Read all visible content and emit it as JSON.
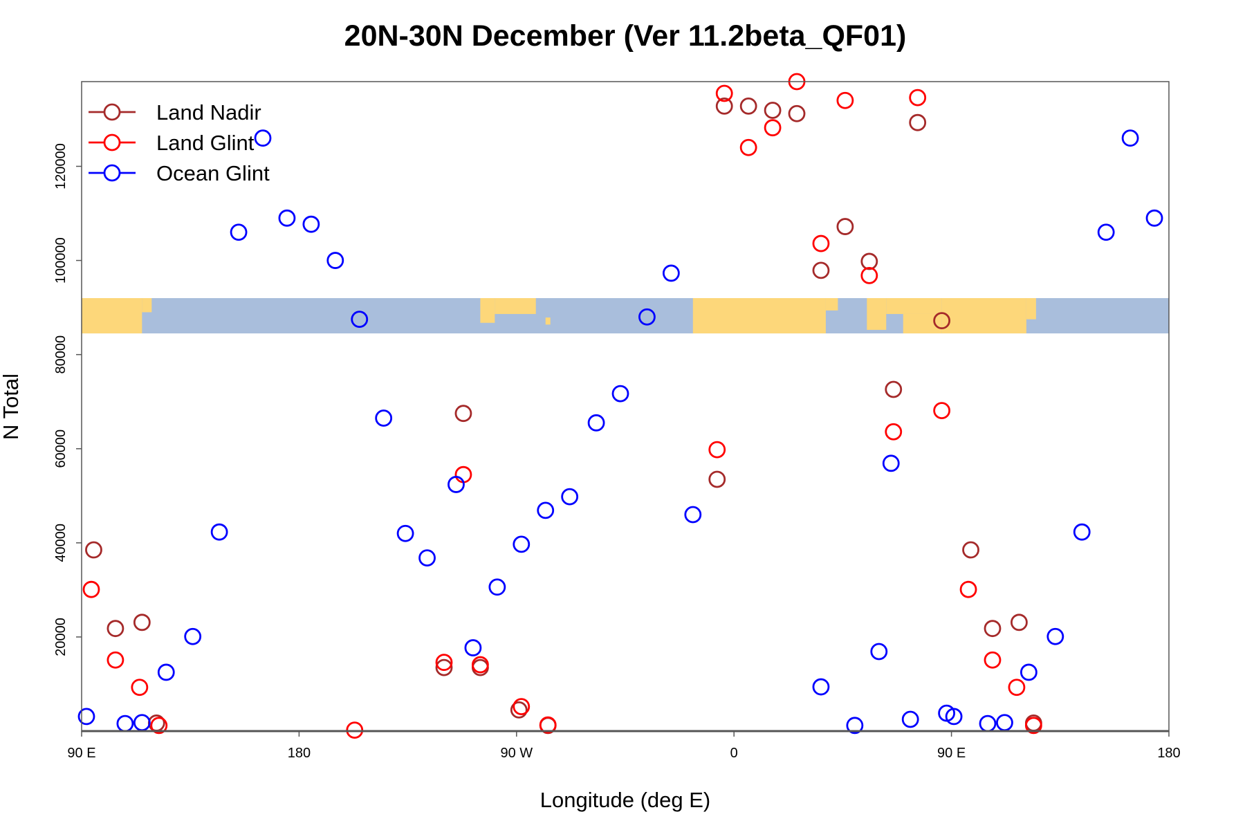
{
  "chart_data": {
    "type": "scatter",
    "title": "20N-30N December (Ver 11.2beta_QF01)",
    "xlabel": "Longitude (deg E)",
    "ylabel": "N Total",
    "x_range_deg": [
      90,
      540
    ],
    "ylim": [
      0,
      138000
    ],
    "x_ticks": [
      {
        "value": 90,
        "label": "90 E"
      },
      {
        "value": 180,
        "label": "180"
      },
      {
        "value": 270,
        "label": "90 W"
      },
      {
        "value": 360,
        "label": "0"
      },
      {
        "value": 450,
        "label": "90 E"
      },
      {
        "value": 540,
        "label": "180"
      }
    ],
    "y_ticks": [
      {
        "value": 20000,
        "label": "20000"
      },
      {
        "value": 40000,
        "label": "40000"
      },
      {
        "value": 60000,
        "label": "60000"
      },
      {
        "value": 80000,
        "label": "80000"
      },
      {
        "value": 100000,
        "label": "100000"
      },
      {
        "value": 120000,
        "label": "120000"
      }
    ],
    "map_strip": {
      "y_range": [
        84500,
        92000
      ],
      "ocean_color": "#a9bedc",
      "land_color": "#fdd77a"
    },
    "legend": {
      "position": "top-left"
    },
    "series": [
      {
        "name": "Land Nadir",
        "color": "#a52a2a",
        "points": [
          [
            95,
            38500
          ],
          [
            104,
            21800
          ],
          [
            115,
            23100
          ],
          [
            121,
            1700
          ],
          [
            248,
            67500
          ],
          [
            240,
            13500
          ],
          [
            255,
            13500
          ],
          [
            271,
            4500
          ],
          [
            283,
            1200
          ],
          [
            353,
            53500
          ],
          [
            356,
            132800
          ],
          [
            366,
            132800
          ],
          [
            376,
            131900
          ],
          [
            386,
            131200
          ],
          [
            396,
            97900
          ],
          [
            406,
            107200
          ],
          [
            416,
            99800
          ],
          [
            426,
            72600
          ],
          [
            436,
            129300
          ],
          [
            446,
            87200
          ],
          [
            458,
            38500
          ],
          [
            467,
            21800
          ],
          [
            478,
            23100
          ],
          [
            484,
            1700
          ]
        ]
      },
      {
        "name": "Land Glint",
        "color": "#ff0000",
        "points": [
          [
            94,
            30100
          ],
          [
            104,
            15100
          ],
          [
            114,
            9300
          ],
          [
            122,
            1200
          ],
          [
            203,
            200
          ],
          [
            240,
            14600
          ],
          [
            248,
            54500
          ],
          [
            255,
            14100
          ],
          [
            272,
            5200
          ],
          [
            283,
            1300
          ],
          [
            353,
            59800
          ],
          [
            356,
            135500
          ],
          [
            366,
            124000
          ],
          [
            376,
            128200
          ],
          [
            386,
            138000
          ],
          [
            396,
            103600
          ],
          [
            406,
            134000
          ],
          [
            416,
            96800
          ],
          [
            426,
            63600
          ],
          [
            436,
            134600
          ],
          [
            446,
            68100
          ],
          [
            457,
            30100
          ],
          [
            467,
            15100
          ],
          [
            477,
            9300
          ],
          [
            484,
            1200
          ]
        ]
      },
      {
        "name": "Ocean Glint",
        "color": "#0000ff",
        "points": [
          [
            92,
            3100
          ],
          [
            108,
            1600
          ],
          [
            115,
            1800
          ],
          [
            125,
            12500
          ],
          [
            136,
            20100
          ],
          [
            147,
            42300
          ],
          [
            155,
            106000
          ],
          [
            165,
            126000
          ],
          [
            175,
            109000
          ],
          [
            185,
            107700
          ],
          [
            195,
            100000
          ],
          [
            205,
            87500
          ],
          [
            215,
            66500
          ],
          [
            224,
            42000
          ],
          [
            233,
            36800
          ],
          [
            245,
            52400
          ],
          [
            252,
            17700
          ],
          [
            262,
            30600
          ],
          [
            272,
            39700
          ],
          [
            282,
            46900
          ],
          [
            292,
            49800
          ],
          [
            303,
            65500
          ],
          [
            313,
            71700
          ],
          [
            324,
            88000
          ],
          [
            334,
            97300
          ],
          [
            343,
            46000
          ],
          [
            396,
            9400
          ],
          [
            410,
            1200
          ],
          [
            420,
            16900
          ],
          [
            425,
            56900
          ],
          [
            433,
            2500
          ],
          [
            448,
            3800
          ],
          [
            451,
            3100
          ],
          [
            465,
            1600
          ],
          [
            472,
            1800
          ],
          [
            482,
            12500
          ],
          [
            493,
            20100
          ],
          [
            504,
            42300
          ],
          [
            514,
            106000
          ],
          [
            524,
            126000
          ],
          [
            534,
            109000
          ]
        ]
      }
    ]
  }
}
